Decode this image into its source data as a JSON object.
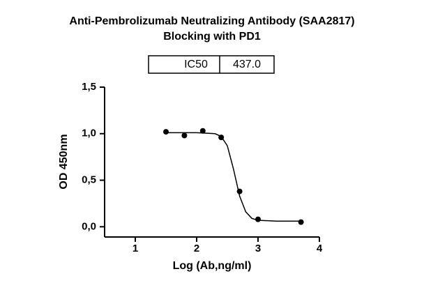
{
  "chart_data": {
    "type": "scatter",
    "title": [
      "Anti-Pembrolizumab Neutralizing Antibody (SAA2817)",
      "Blocking with PD1"
    ],
    "ic50_table": {
      "label": "IC50",
      "value": "437.0"
    },
    "x_label": "Log (Ab,ng/ml)",
    "y_label": "OD 450nm",
    "x": [
      1.5,
      1.8,
      2.1,
      2.4,
      2.7,
      3.0,
      3.7
    ],
    "values": [
      1.02,
      0.98,
      1.03,
      0.96,
      0.38,
      0.08,
      0.05
    ],
    "color": "#000000",
    "fit_curve": {
      "x": [
        1.5,
        2.0,
        2.3,
        2.4,
        2.5,
        2.6,
        2.7,
        2.8,
        2.9,
        3.0,
        3.3,
        3.7
      ],
      "y": [
        1.01,
        1.01,
        1.0,
        0.97,
        0.87,
        0.62,
        0.33,
        0.16,
        0.09,
        0.07,
        0.06,
        0.06
      ]
    },
    "xlim": [
      0.5,
      4
    ],
    "xticks": [
      1,
      2,
      3,
      4
    ],
    "ylim": [
      -0.11,
      1.5
    ],
    "yticks": [
      {
        "value": 0,
        "label": "0,0"
      },
      {
        "value": 0.5,
        "label": "0,5"
      },
      {
        "value": 1,
        "label": "1,0"
      },
      {
        "value": 1.5,
        "label": "1,5"
      }
    ]
  }
}
